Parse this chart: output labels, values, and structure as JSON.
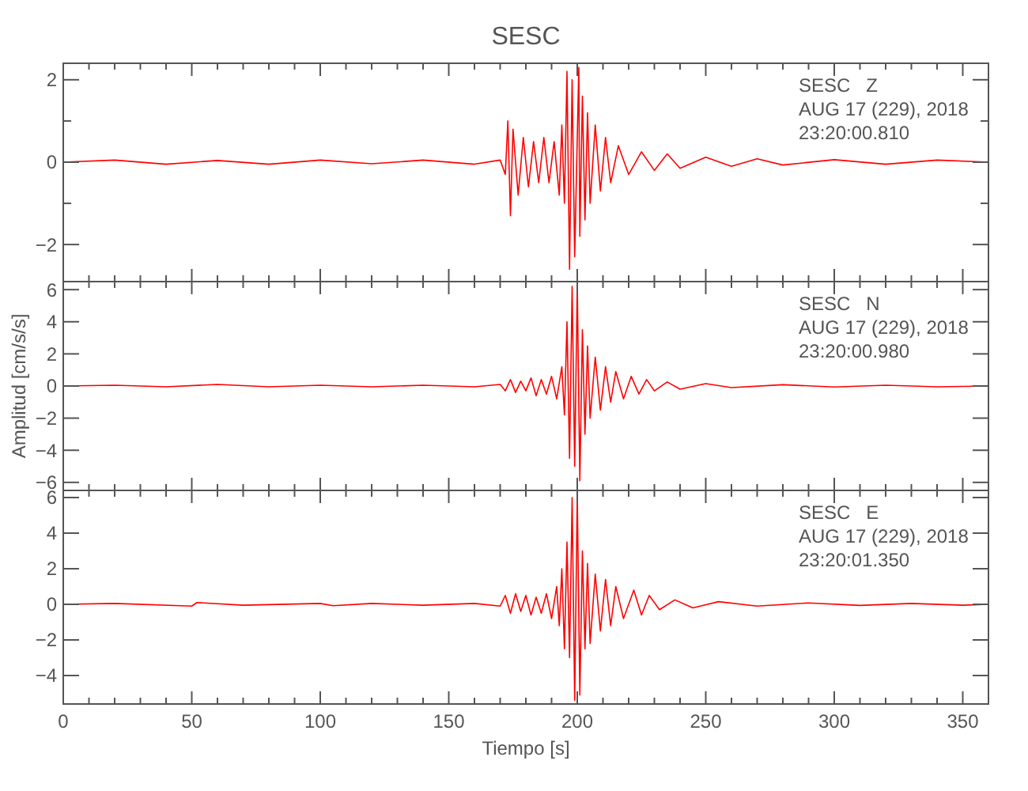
{
  "chart_data": [
    {
      "type": "line",
      "title": "SESC",
      "annotations": [
        "SESC   Z",
        "AUG 17 (229), 2018",
        "23:20:00.810"
      ],
      "tick_labels": "y",
      "xlim": [
        0,
        360
      ],
      "ylim": [
        -2.9,
        2.4
      ],
      "xticks": [
        0,
        {
          "value": 10,
          "label": null
        },
        {
          "value": 20,
          "label": null
        },
        {
          "value": 30,
          "label": null
        },
        {
          "value": 40,
          "label": null
        },
        50,
        {
          "value": 60,
          "label": null
        },
        {
          "value": 70,
          "label": null
        },
        {
          "value": 80,
          "label": null
        },
        {
          "value": 90,
          "label": null
        },
        100,
        {
          "value": 110,
          "label": null
        },
        {
          "value": 120,
          "label": null
        },
        {
          "value": 130,
          "label": null
        },
        {
          "value": 140,
          "label": null
        },
        150,
        {
          "value": 160,
          "label": null
        },
        {
          "value": 170,
          "label": null
        },
        {
          "value": 180,
          "label": null
        },
        {
          "value": 190,
          "label": null
        },
        200,
        {
          "value": 210,
          "label": null
        },
        {
          "value": 220,
          "label": null
        },
        {
          "value": 230,
          "label": null
        },
        {
          "value": 240,
          "label": null
        },
        250,
        {
          "value": 260,
          "label": null
        },
        {
          "value": 270,
          "label": null
        },
        {
          "value": 280,
          "label": null
        },
        {
          "value": 290,
          "label": null
        },
        300,
        {
          "value": 310,
          "label": null
        },
        {
          "value": 320,
          "label": null
        },
        {
          "value": 330,
          "label": null
        },
        {
          "value": 340,
          "label": null
        },
        350,
        {
          "value": 360,
          "label": null
        }
      ],
      "yticks": [
        -2,
        {
          "value": -1,
          "label": null
        },
        0,
        {
          "value": 1,
          "label": null
        },
        2
      ],
      "series": [
        {
          "color": "#ff0000",
          "x": [
            0,
            20,
            40,
            60,
            80,
            100,
            120,
            140,
            160,
            170,
            172,
            173,
            174,
            175,
            177,
            179,
            181,
            183,
            185,
            187,
            189,
            191,
            193,
            194,
            195,
            196,
            197,
            198,
            199,
            200.6,
            201,
            202,
            203,
            204,
            205,
            207,
            209,
            211,
            213,
            216,
            220,
            225,
            230,
            235,
            240,
            250,
            260,
            270,
            280,
            300,
            320,
            340,
            360
          ],
          "values": [
            0,
            0.05,
            -0.05,
            0.04,
            -0.05,
            0.05,
            -0.04,
            0.05,
            -0.05,
            0.05,
            -0.3,
            1.0,
            -1.3,
            0.8,
            -0.8,
            0.6,
            -0.6,
            0.5,
            -0.5,
            0.6,
            -0.5,
            0.5,
            -0.8,
            0.9,
            -1.0,
            2.2,
            -2.6,
            2.0,
            -2.3,
            2.3,
            -1.8,
            1.6,
            -1.4,
            1.2,
            -1.0,
            0.9,
            -0.7,
            0.6,
            -0.5,
            0.4,
            -0.3,
            0.25,
            -0.2,
            0.2,
            -0.15,
            0.12,
            -0.1,
            0.08,
            -0.07,
            0.06,
            -0.05,
            0.05,
            0
          ]
        }
      ]
    },
    {
      "type": "line",
      "ylabel": "Amplitud [cm/s/s]",
      "annotations": [
        "SESC   N",
        "AUG 17 (229), 2018",
        "23:20:00.980"
      ],
      "tick_labels": "y",
      "xlim": [
        0,
        360
      ],
      "ylim": [
        -6.5,
        6.5
      ],
      "xticks": [
        0,
        {
          "value": 10,
          "label": null
        },
        {
          "value": 20,
          "label": null
        },
        {
          "value": 30,
          "label": null
        },
        {
          "value": 40,
          "label": null
        },
        50,
        {
          "value": 60,
          "label": null
        },
        {
          "value": 70,
          "label": null
        },
        {
          "value": 80,
          "label": null
        },
        {
          "value": 90,
          "label": null
        },
        100,
        {
          "value": 110,
          "label": null
        },
        {
          "value": 120,
          "label": null
        },
        {
          "value": 130,
          "label": null
        },
        {
          "value": 140,
          "label": null
        },
        150,
        {
          "value": 160,
          "label": null
        },
        {
          "value": 170,
          "label": null
        },
        {
          "value": 180,
          "label": null
        },
        {
          "value": 190,
          "label": null
        },
        200,
        {
          "value": 210,
          "label": null
        },
        {
          "value": 220,
          "label": null
        },
        {
          "value": 230,
          "label": null
        },
        {
          "value": 240,
          "label": null
        },
        250,
        {
          "value": 260,
          "label": null
        },
        {
          "value": 270,
          "label": null
        },
        {
          "value": 280,
          "label": null
        },
        {
          "value": 290,
          "label": null
        },
        300,
        {
          "value": 310,
          "label": null
        },
        {
          "value": 320,
          "label": null
        },
        {
          "value": 330,
          "label": null
        },
        {
          "value": 340,
          "label": null
        },
        350,
        {
          "value": 360,
          "label": null
        }
      ],
      "yticks": [
        -6,
        -4,
        -2,
        0,
        2,
        4,
        6
      ],
      "series": [
        {
          "color": "#ff0000",
          "x": [
            0,
            20,
            40,
            60,
            80,
            100,
            120,
            140,
            160,
            170,
            172,
            174,
            176,
            178,
            180,
            182,
            184,
            186,
            188,
            190,
            192,
            194,
            195,
            196,
            197,
            198,
            199,
            200,
            201,
            202,
            203,
            204,
            205,
            207,
            209,
            211,
            213,
            215,
            218,
            221,
            224,
            227,
            230,
            235,
            240,
            250,
            260,
            280,
            300,
            320,
            340,
            360
          ],
          "values": [
            0,
            0.05,
            -0.05,
            0.1,
            -0.05,
            0.05,
            -0.05,
            0.05,
            -0.05,
            0.1,
            -0.3,
            0.4,
            -0.4,
            0.3,
            -0.3,
            0.5,
            -0.6,
            0.4,
            -0.5,
            0.6,
            -0.8,
            1.2,
            -1.8,
            4.0,
            -4.5,
            6.2,
            -5.0,
            6.3,
            -5.9,
            3.5,
            -3.0,
            2.5,
            -2.0,
            1.8,
            -1.5,
            1.2,
            -1.0,
            0.9,
            -0.8,
            0.6,
            -0.5,
            0.4,
            -0.3,
            0.25,
            -0.2,
            0.15,
            -0.1,
            0.08,
            -0.06,
            0.05,
            -0.05,
            0
          ]
        }
      ]
    },
    {
      "type": "line",
      "xlabel": "Tiempo [s]",
      "annotations": [
        "SESC   E",
        "AUG 17 (229), 2018",
        "23:20:01.350"
      ],
      "xlim": [
        0,
        360
      ],
      "ylim": [
        -5.6,
        6.4
      ],
      "xticks": [
        0,
        {
          "value": 10,
          "label": null
        },
        {
          "value": 20,
          "label": null
        },
        {
          "value": 30,
          "label": null
        },
        {
          "value": 40,
          "label": null
        },
        50,
        {
          "value": 60,
          "label": null
        },
        {
          "value": 70,
          "label": null
        },
        {
          "value": 80,
          "label": null
        },
        {
          "value": 90,
          "label": null
        },
        100,
        {
          "value": 110,
          "label": null
        },
        {
          "value": 120,
          "label": null
        },
        {
          "value": 130,
          "label": null
        },
        {
          "value": 140,
          "label": null
        },
        150,
        {
          "value": 160,
          "label": null
        },
        {
          "value": 170,
          "label": null
        },
        {
          "value": 180,
          "label": null
        },
        {
          "value": 190,
          "label": null
        },
        200,
        {
          "value": 210,
          "label": null
        },
        {
          "value": 220,
          "label": null
        },
        {
          "value": 230,
          "label": null
        },
        {
          "value": 240,
          "label": null
        },
        250,
        {
          "value": 260,
          "label": null
        },
        {
          "value": 270,
          "label": null
        },
        {
          "value": 280,
          "label": null
        },
        {
          "value": 290,
          "label": null
        },
        300,
        {
          "value": 310,
          "label": null
        },
        {
          "value": 320,
          "label": null
        },
        {
          "value": 330,
          "label": null
        },
        {
          "value": 340,
          "label": null
        },
        350,
        {
          "value": 360,
          "label": null
        }
      ],
      "yticks": [
        -4,
        -2,
        0,
        2,
        4,
        6
      ],
      "series": [
        {
          "color": "#ff0000",
          "x": [
            0,
            20,
            50,
            52,
            70,
            100,
            105,
            120,
            140,
            160,
            170,
            172,
            174,
            176,
            178,
            180,
            182,
            184,
            186,
            188,
            190,
            192,
            193,
            194,
            195,
            196,
            197,
            198,
            199,
            200,
            201,
            202,
            203,
            204,
            205,
            207,
            209,
            211,
            213,
            215,
            218,
            222,
            225,
            228,
            232,
            238,
            245,
            255,
            270,
            290,
            310,
            330,
            350,
            360
          ],
          "values": [
            0,
            0.05,
            -0.1,
            0.1,
            -0.05,
            0.05,
            -0.08,
            0.05,
            -0.05,
            0.05,
            -0.1,
            0.5,
            -0.5,
            0.6,
            -0.4,
            0.5,
            -0.6,
            0.4,
            -0.5,
            0.6,
            -0.8,
            1.0,
            -1.2,
            2.0,
            -2.5,
            3.5,
            -3.0,
            6.0,
            -5.4,
            6.2,
            -5.1,
            3.0,
            -2.5,
            2.3,
            -2.2,
            1.7,
            -1.5,
            1.4,
            -1.2,
            1.0,
            -0.8,
            0.8,
            -0.6,
            0.5,
            -0.3,
            0.25,
            -0.2,
            0.15,
            -0.1,
            0.08,
            -0.06,
            0.05,
            -0.05,
            0
          ]
        }
      ]
    }
  ]
}
